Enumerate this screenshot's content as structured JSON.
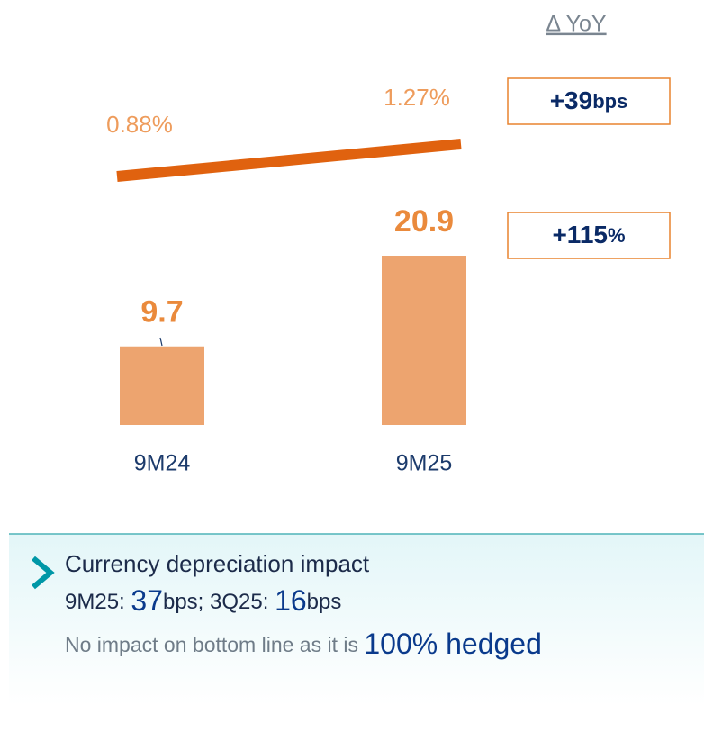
{
  "chart_data": {
    "type": "bar",
    "categories": [
      "9M24",
      "9M25"
    ],
    "series": [
      {
        "type": "bar",
        "color": "#eda46f",
        "values": [
          9.7,
          20.9
        ]
      },
      {
        "type": "line",
        "color": "#e0620f",
        "values": [
          0.88,
          1.27
        ],
        "value_labels": [
          "0.88%",
          "1.27%"
        ]
      }
    ],
    "delta_header": "Δ YoY",
    "annotations": [
      {
        "label": "+39",
        "suffix": "bps"
      },
      {
        "label": "+115",
        "suffix": "%"
      }
    ]
  },
  "note": {
    "line1": "Currency depreciation impact",
    "line2": [
      {
        "text": "9M25",
        "big": false
      },
      {
        "text": ": ",
        "big": false
      },
      {
        "text": "37",
        "big": true
      },
      {
        "text": "bps; 3Q25: ",
        "big": false
      },
      {
        "text": "16",
        "big": true
      },
      {
        "text": "bps",
        "big": false
      }
    ],
    "line3": [
      {
        "text": "No impact on bottom line as it is ",
        "big": false
      },
      {
        "text": "100% hedged",
        "big": true
      }
    ]
  }
}
